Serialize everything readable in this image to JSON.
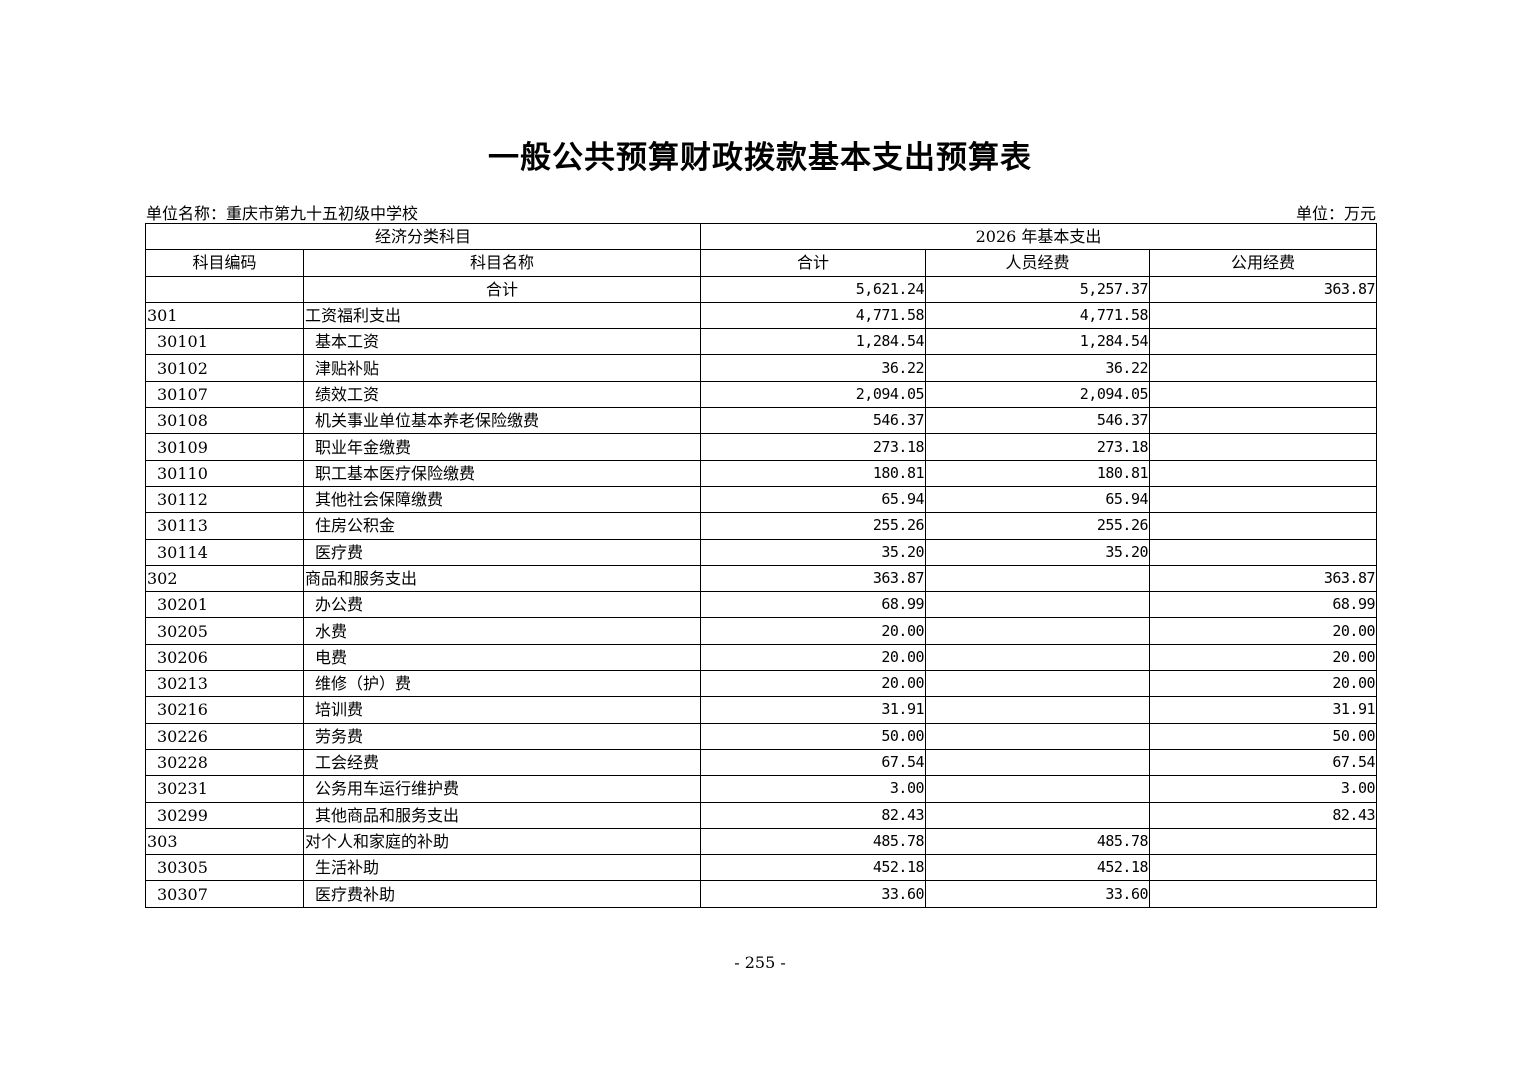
{
  "title": "一般公共预算财政拨款基本支出预算表",
  "unit_name": "单位名称：重庆市第九十五初级中学校",
  "unit": "单位：万元",
  "header": {
    "group_left": "经济分类科目",
    "group_right": "2026 年基本支出",
    "code": "科目编码",
    "name": "科目名称",
    "total": "合计",
    "personnel": "人员经费",
    "public": "公用经费"
  },
  "rows": [
    {
      "level": 0,
      "code": "",
      "name": "合计",
      "total": "5,621.24",
      "personnel": "5,257.37",
      "public": "363.87"
    },
    {
      "level": 1,
      "code": "301",
      "name": "工资福利支出",
      "total": "4,771.58",
      "personnel": "4,771.58",
      "public": ""
    },
    {
      "level": 2,
      "code": "30101",
      "name": "基本工资",
      "total": "1,284.54",
      "personnel": "1,284.54",
      "public": ""
    },
    {
      "level": 2,
      "code": "30102",
      "name": "津贴补贴",
      "total": "36.22",
      "personnel": "36.22",
      "public": ""
    },
    {
      "level": 2,
      "code": "30107",
      "name": "绩效工资",
      "total": "2,094.05",
      "personnel": "2,094.05",
      "public": ""
    },
    {
      "level": 2,
      "code": "30108",
      "name": "机关事业单位基本养老保险缴费",
      "total": "546.37",
      "personnel": "546.37",
      "public": ""
    },
    {
      "level": 2,
      "code": "30109",
      "name": "职业年金缴费",
      "total": "273.18",
      "personnel": "273.18",
      "public": ""
    },
    {
      "level": 2,
      "code": "30110",
      "name": "职工基本医疗保险缴费",
      "total": "180.81",
      "personnel": "180.81",
      "public": ""
    },
    {
      "level": 2,
      "code": "30112",
      "name": "其他社会保障缴费",
      "total": "65.94",
      "personnel": "65.94",
      "public": ""
    },
    {
      "level": 2,
      "code": "30113",
      "name": "住房公积金",
      "total": "255.26",
      "personnel": "255.26",
      "public": ""
    },
    {
      "level": 2,
      "code": "30114",
      "name": "医疗费",
      "total": "35.20",
      "personnel": "35.20",
      "public": ""
    },
    {
      "level": 1,
      "code": "302",
      "name": "商品和服务支出",
      "total": "363.87",
      "personnel": "",
      "public": "363.87"
    },
    {
      "level": 2,
      "code": "30201",
      "name": "办公费",
      "total": "68.99",
      "personnel": "",
      "public": "68.99"
    },
    {
      "level": 2,
      "code": "30205",
      "name": "水费",
      "total": "20.00",
      "personnel": "",
      "public": "20.00"
    },
    {
      "level": 2,
      "code": "30206",
      "name": "电费",
      "total": "20.00",
      "personnel": "",
      "public": "20.00"
    },
    {
      "level": 2,
      "code": "30213",
      "name": "维修（护）费",
      "total": "20.00",
      "personnel": "",
      "public": "20.00"
    },
    {
      "level": 2,
      "code": "30216",
      "name": "培训费",
      "total": "31.91",
      "personnel": "",
      "public": "31.91"
    },
    {
      "level": 2,
      "code": "30226",
      "name": "劳务费",
      "total": "50.00",
      "personnel": "",
      "public": "50.00"
    },
    {
      "level": 2,
      "code": "30228",
      "name": "工会经费",
      "total": "67.54",
      "personnel": "",
      "public": "67.54"
    },
    {
      "level": 2,
      "code": "30231",
      "name": "公务用车运行维护费",
      "total": "3.00",
      "personnel": "",
      "public": "3.00"
    },
    {
      "level": 2,
      "code": "30299",
      "name": "其他商品和服务支出",
      "total": "82.43",
      "personnel": "",
      "public": "82.43"
    },
    {
      "level": 1,
      "code": "303",
      "name": "对个人和家庭的补助",
      "total": "485.78",
      "personnel": "485.78",
      "public": ""
    },
    {
      "level": 2,
      "code": "30305",
      "name": "生活补助",
      "total": "452.18",
      "personnel": "452.18",
      "public": ""
    },
    {
      "level": 2,
      "code": "30307",
      "name": "医疗费补助",
      "total": "33.60",
      "personnel": "33.60",
      "public": ""
    }
  ],
  "page_number": "- 255 -"
}
